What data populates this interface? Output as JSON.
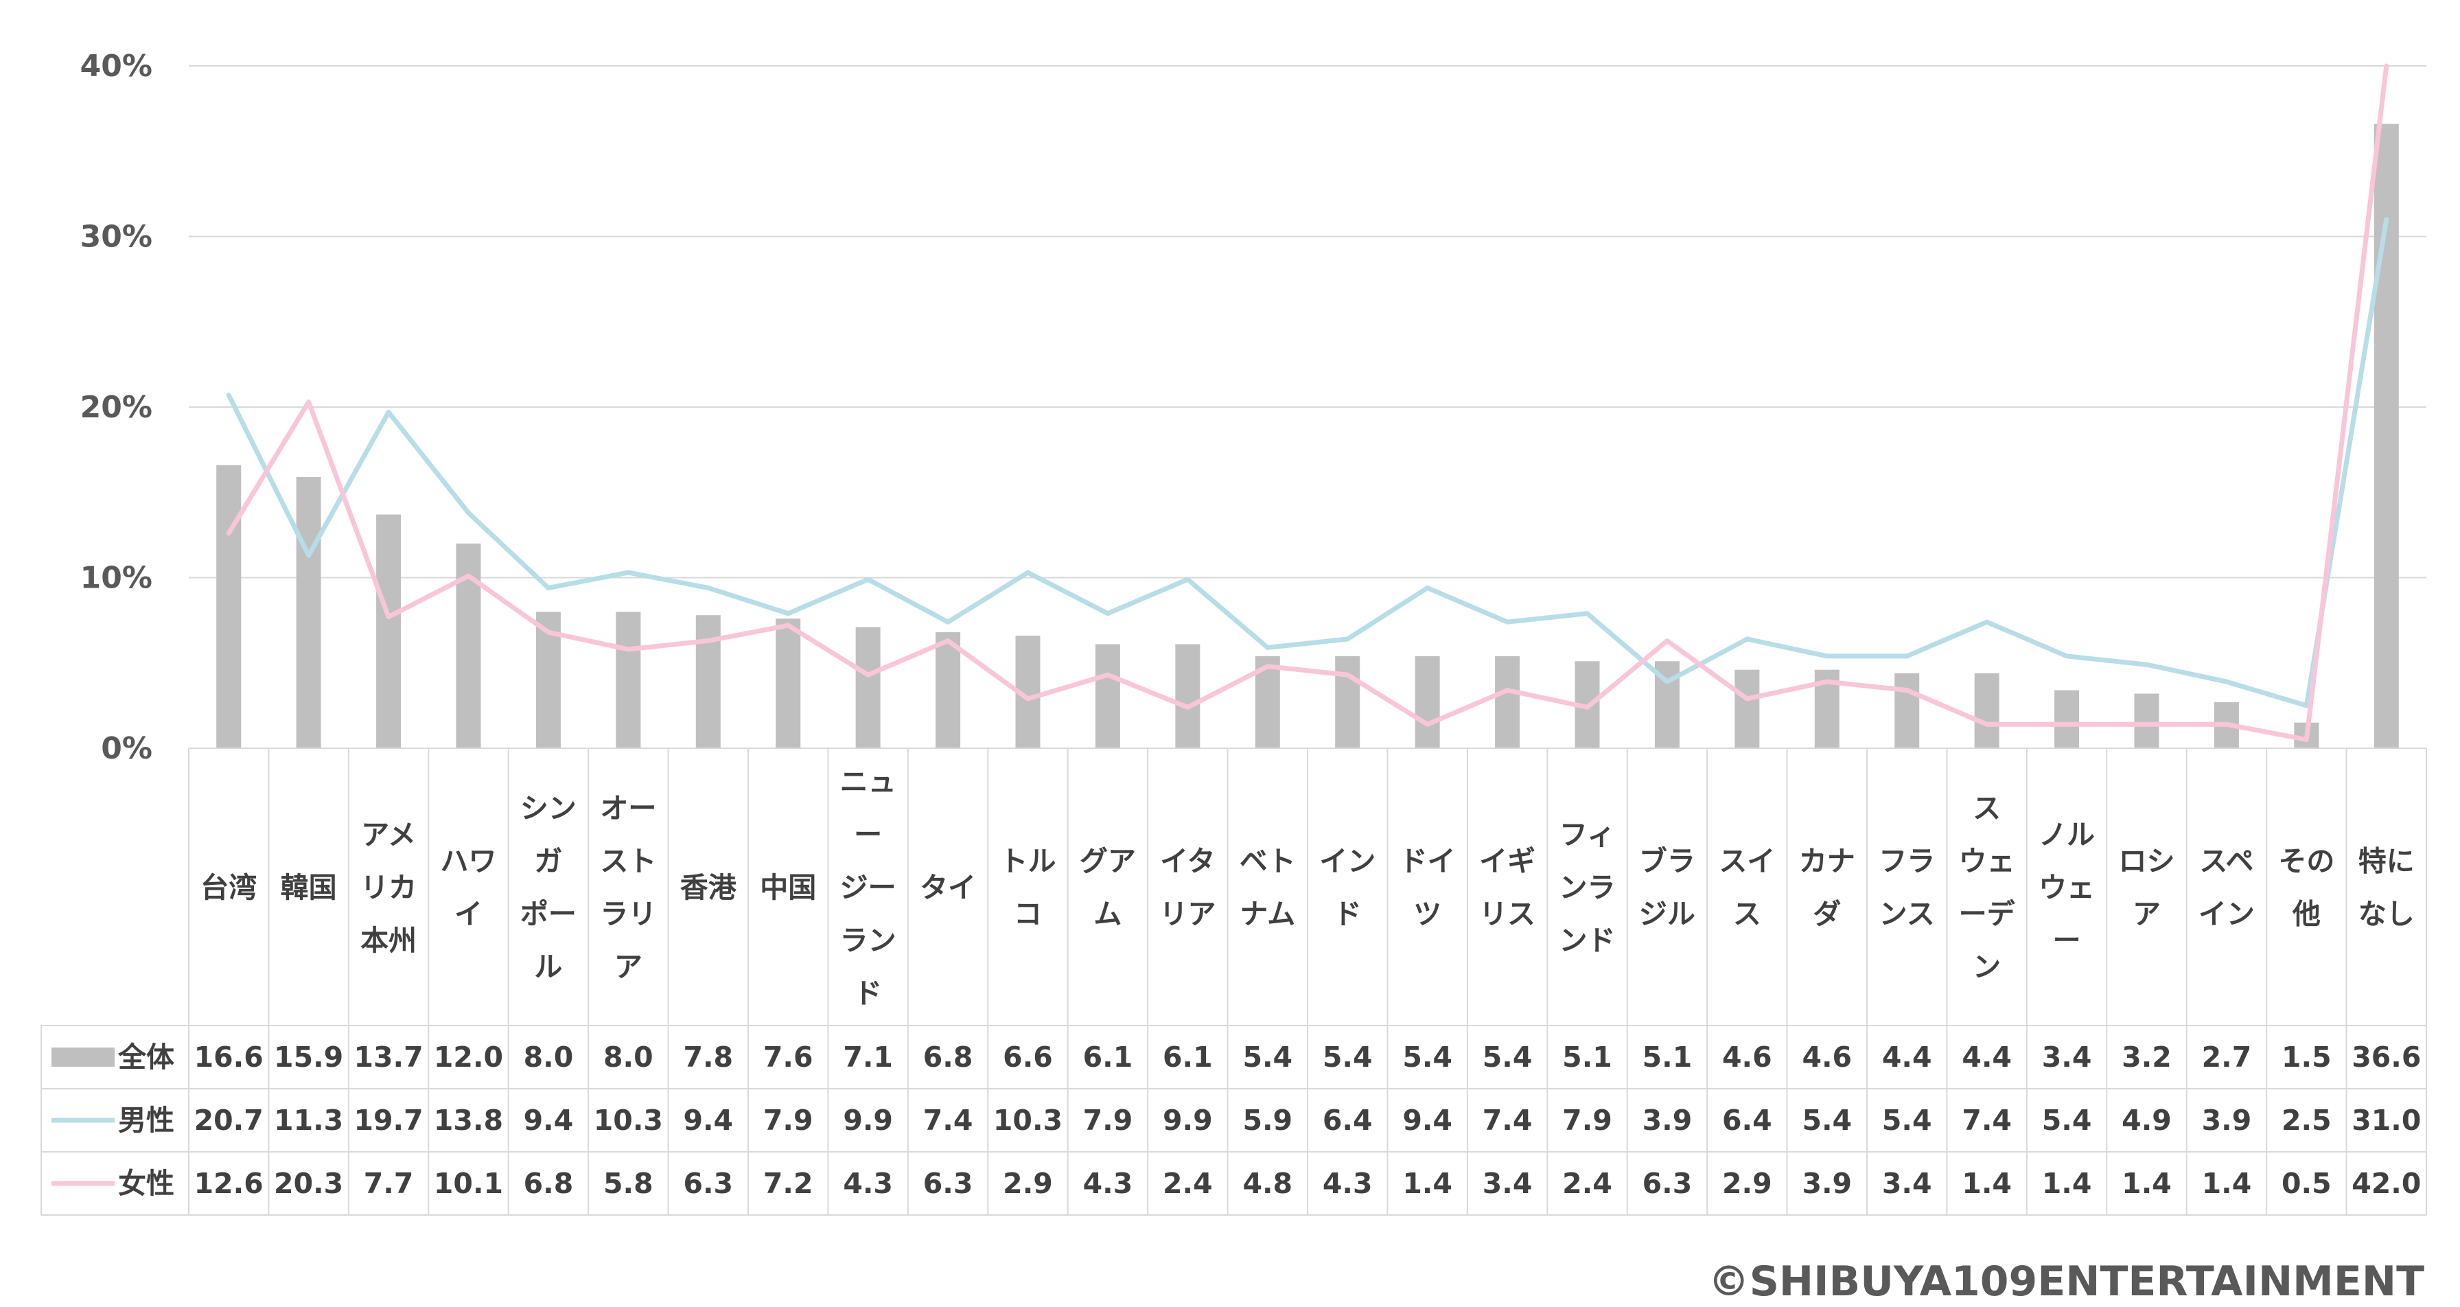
{
  "chart_data": {
    "type": "bar",
    "categories": [
      [
        "台湾"
      ],
      [
        "韓国"
      ],
      [
        "アメ",
        "リカ",
        "本州"
      ],
      [
        "ハワ",
        "イ"
      ],
      [
        "シン",
        "ガ",
        "ポー",
        "ル"
      ],
      [
        "オー",
        "スト",
        "ラリ",
        "ア"
      ],
      [
        "香港"
      ],
      [
        "中国"
      ],
      [
        "ニュ",
        "ー",
        "ジー",
        "ラン",
        "ド"
      ],
      [
        "タイ"
      ],
      [
        "トル",
        "コ"
      ],
      [
        "グア",
        "ム"
      ],
      [
        "イタ",
        "リア"
      ],
      [
        "ベト",
        "ナム"
      ],
      [
        "イン",
        "ド"
      ],
      [
        "ドイ",
        "ツ"
      ],
      [
        "イギ",
        "リス"
      ],
      [
        "フィ",
        "ンラ",
        "ンド"
      ],
      [
        "ブラ",
        "ジル"
      ],
      [
        "スイ",
        "ス"
      ],
      [
        "カナ",
        "ダ"
      ],
      [
        "フラ",
        "ンス"
      ],
      [
        "ス",
        "ウェ",
        "ーデ",
        "ン"
      ],
      [
        "ノル",
        "ウェ",
        "ー"
      ],
      [
        "ロシ",
        "ア"
      ],
      [
        "スペ",
        "イン"
      ],
      [
        "その",
        "他"
      ],
      [
        "特に",
        "なし"
      ]
    ],
    "series": [
      {
        "name": "全体",
        "kind": "bar",
        "color": "#bfbfbf",
        "values": [
          16.6,
          15.9,
          13.7,
          12.0,
          8.0,
          8.0,
          7.8,
          7.6,
          7.1,
          6.8,
          6.6,
          6.1,
          6.1,
          5.4,
          5.4,
          5.4,
          5.4,
          5.1,
          5.1,
          4.6,
          4.6,
          4.4,
          4.4,
          3.4,
          3.2,
          2.7,
          1.5,
          36.6
        ]
      },
      {
        "name": "男性",
        "kind": "line",
        "color": "#b7dde8",
        "values": [
          20.7,
          11.3,
          19.7,
          13.8,
          9.4,
          10.3,
          9.4,
          7.9,
          9.9,
          7.4,
          10.3,
          7.9,
          9.9,
          5.9,
          6.4,
          9.4,
          7.4,
          7.9,
          3.9,
          6.4,
          5.4,
          5.4,
          7.4,
          5.4,
          4.9,
          3.9,
          2.5,
          31.0
        ]
      },
      {
        "name": "女性",
        "kind": "line",
        "color": "#f9c5d9",
        "values": [
          12.6,
          20.3,
          7.7,
          10.1,
          6.8,
          5.8,
          6.3,
          7.2,
          4.3,
          6.3,
          2.9,
          4.3,
          2.4,
          4.8,
          4.3,
          1.4,
          3.4,
          2.4,
          6.3,
          2.9,
          3.9,
          3.4,
          1.4,
          1.4,
          1.4,
          1.4,
          0.5,
          42.0
        ]
      }
    ],
    "yticks": [
      "0%",
      "10%",
      "20%",
      "30%",
      "40%"
    ],
    "ylim": [
      0,
      40
    ],
    "grid": true,
    "data_table": true
  },
  "copyright": "©SHIBUYA109ENTERTAINMENT"
}
